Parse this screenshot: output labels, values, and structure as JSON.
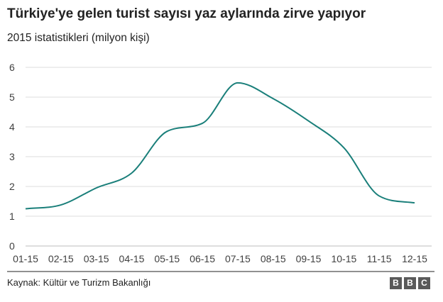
{
  "header": {
    "title": "Türkiye'ye gelen turist sayısı yaz aylarında zirve yapıyor",
    "subtitle": "2015 istatistikleri (milyon kişi)"
  },
  "footer": {
    "source": "Kaynak: Kültür ve Turizm Bakanlığı",
    "logo_letters": [
      "B",
      "B",
      "C"
    ]
  },
  "colors": {
    "line": "#1a7f7a",
    "grid": "#dcdcdc",
    "axis": "#222222",
    "logo_bg": "#5a5a5a"
  },
  "chart_data": {
    "type": "line",
    "title": "Türkiye'ye gelen turist sayısı yaz aylarında zirve yapıyor",
    "subtitle": "2015 istatistikleri (milyon kişi)",
    "xlabel": "",
    "ylabel": "",
    "categories": [
      "01-15",
      "02-15",
      "03-15",
      "04-15",
      "05-15",
      "06-15",
      "07-15",
      "08-15",
      "09-15",
      "10-15",
      "11-15",
      "12-15"
    ],
    "series": [
      {
        "values": [
          1.25,
          1.38,
          1.95,
          2.45,
          3.85,
          4.12,
          5.48,
          4.95,
          4.2,
          3.3,
          1.68,
          1.45
        ]
      }
    ],
    "ylim": [
      0,
      6
    ],
    "yticks": [
      "0",
      "1",
      "2",
      "3",
      "4",
      "5",
      "6"
    ],
    "grid": true,
    "legend": "none"
  }
}
